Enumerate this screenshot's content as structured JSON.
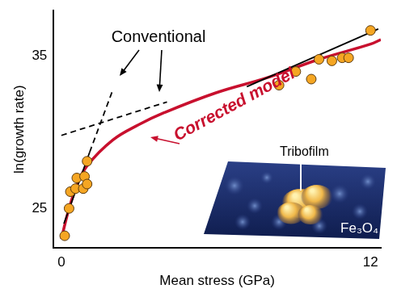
{
  "chart_data": {
    "type": "scatter",
    "x_label": "Mean stress (GPa)",
    "y_label": "ln(growth rate)",
    "xlim": [
      -0.3,
      12.4
    ],
    "ylim": [
      22.4,
      38
    ],
    "xticks": [
      0,
      12
    ],
    "yticks": [
      25,
      35
    ],
    "grid": false,
    "series": [
      {
        "type": "line",
        "color": "#000000",
        "line_style": "solid",
        "x": [
          0.1,
          1.1
        ],
        "values": [
          24.0,
          28.7
        ]
      },
      {
        "type": "line",
        "color": "#000000",
        "line_style": "dashed",
        "x": [
          1.1,
          2.0
        ],
        "values": [
          28.7,
          32.8
        ]
      },
      {
        "type": "line",
        "color": "#000000",
        "line_style": "dashed",
        "x": [
          0,
          4.1
        ],
        "values": [
          29.8,
          32.0
        ]
      },
      {
        "type": "line",
        "color": "#000000",
        "line_style": "solid",
        "x": [
          7.2,
          12.3
        ],
        "values": [
          33.0,
          36.8
        ]
      },
      {
        "type": "line",
        "color": "#c8102e",
        "line_style": "solid",
        "x": [
          0,
          0.3,
          0.6,
          1,
          2,
          3,
          4,
          6,
          8,
          10,
          12,
          12.4
        ],
        "values": [
          23.0,
          25.0,
          26.5,
          27.8,
          29.5,
          30.5,
          31.3,
          32.6,
          33.6,
          34.8,
          35.8,
          36.1
        ]
      },
      {
        "type": "scatter",
        "color": "#f5a623",
        "marker": "circle",
        "x": [
          0.13,
          0.3,
          0.35,
          0.6,
          0.55,
          0.9,
          0.85,
          1.0,
          1.0,
          8.45,
          9.1,
          9.7,
          10.0,
          10.5,
          10.9,
          11.15,
          12.0
        ],
        "values": [
          23.2,
          25.0,
          26.1,
          27.0,
          26.3,
          27.1,
          26.3,
          28.1,
          26.6,
          33.1,
          34.0,
          33.5,
          34.8,
          34.7,
          34.9,
          34.9,
          36.7
        ]
      }
    ],
    "annotations": [
      {
        "text": "Conventional",
        "color": "#000000"
      },
      {
        "text": "Corrected model",
        "color": "#c8102e"
      },
      {
        "text": "Tribofilm",
        "color": "#000000"
      },
      {
        "text": "Fe₃O₄",
        "color": "#ffffff"
      }
    ]
  }
}
